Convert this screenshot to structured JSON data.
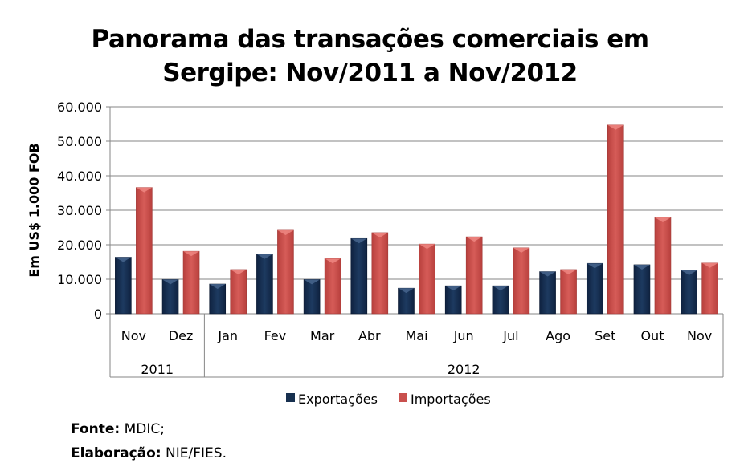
{
  "chart_data": {
    "type": "bar",
    "title_line1": "Panorama das transações comerciais em",
    "title_line2": "Sergipe: Nov/2011 a Nov/2012",
    "ylabel": "Em US$ 1.000 FOB",
    "xlabel": "",
    "ylim": [
      0,
      60000
    ],
    "yticks": [
      "0",
      "10.000",
      "20.000",
      "30.000",
      "40.000",
      "50.000",
      "60.000"
    ],
    "categories": [
      "Nov",
      "Dez",
      "Jan",
      "Fev",
      "Mar",
      "Abr",
      "Mai",
      "Jun",
      "Jul",
      "Ago",
      "Set",
      "Out",
      "Nov"
    ],
    "groups": [
      {
        "label": "2011",
        "count": 2
      },
      {
        "label": "2012",
        "count": 11
      }
    ],
    "grid": true,
    "legend_position": "bottom",
    "series": [
      {
        "name": "Exportações",
        "color": "#17304f",
        "values": [
          16400,
          9900,
          8600,
          17300,
          9900,
          21800,
          7400,
          8100,
          8100,
          12200,
          14600,
          14200,
          12600
        ]
      },
      {
        "name": "Importações",
        "color": "#c9504d",
        "values": [
          36600,
          18100,
          12800,
          24200,
          16000,
          23500,
          20200,
          22300,
          19100,
          12800,
          54700,
          27900,
          14700
        ]
      }
    ]
  },
  "footer": {
    "source_label": "Fonte:",
    "source_value": " MDIC;",
    "prep_label": "Elaboração:",
    "prep_value": " NIE/FIES."
  }
}
